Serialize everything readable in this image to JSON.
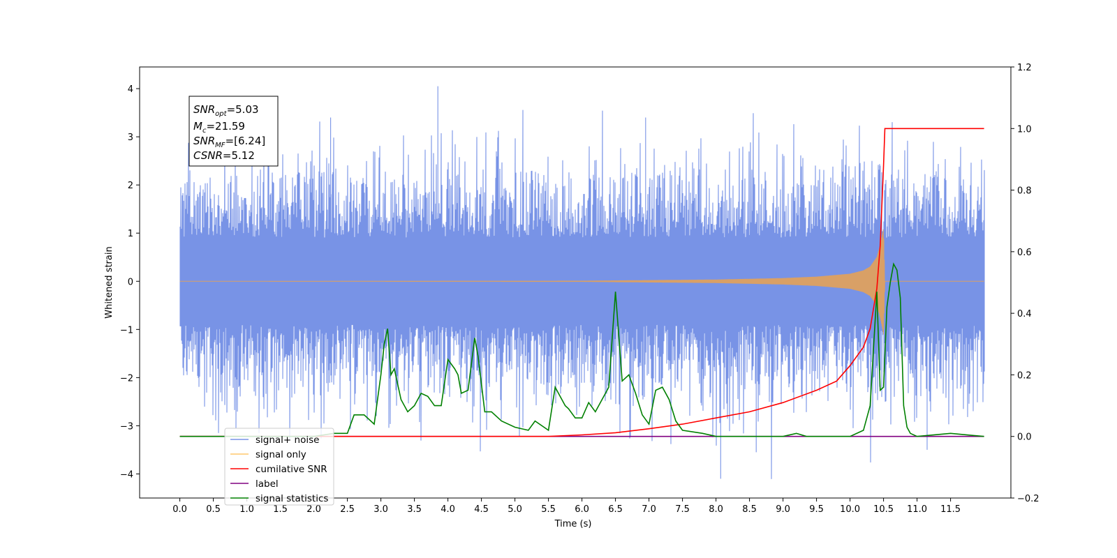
{
  "chart_data": {
    "type": "line",
    "xlabel": "Time (s)",
    "ylabel": "Whitened strain",
    "xlim": [
      -0.6,
      12.4
    ],
    "ylim": [
      -4.5,
      4.45
    ],
    "y2lim": [
      -0.2,
      1.2
    ],
    "x_ticks": [
      "0.0",
      "0.5",
      "1.0",
      "1.5",
      "2.0",
      "2.5",
      "3.0",
      "3.5",
      "4.0",
      "4.5",
      "5.0",
      "5.5",
      "6.0",
      "6.5",
      "7.0",
      "7.5",
      "8.0",
      "8.5",
      "9.0",
      "9.5",
      "10.0",
      "10.5",
      "11.0",
      "11.5"
    ],
    "y_ticks": [
      "4",
      "3",
      "2",
      "1",
      "0",
      "−1",
      "−2",
      "−3",
      "−4"
    ],
    "y2_ticks": [
      "1.2",
      "1.0",
      "0.8",
      "0.6",
      "0.4",
      "0.2",
      "0.0",
      "−0.2"
    ],
    "annotation": {
      "line1": {
        "label": "SNR",
        "sub": "opt",
        "value": "=5.03"
      },
      "line2": {
        "label": "M",
        "sub": "c",
        "value": "=21.59"
      },
      "line3": {
        "label": "SNR",
        "sub": "MF",
        "value": "=[6.24]"
      },
      "line4": {
        "label": "CSNR",
        "sub": "",
        "value": "=5.12"
      }
    },
    "legend": {
      "placement": "lower-left",
      "entries": [
        {
          "label": "signal+ noise",
          "color": "#7893e6"
        },
        {
          "label": "signal only",
          "color": "#ffc76b"
        },
        {
          "label": "cumilative SNR",
          "color": "#ff0000"
        },
        {
          "label": "label",
          "color": "#800080"
        },
        {
          "label": "signal statistics",
          "color": "#008000"
        }
      ]
    },
    "series": [
      {
        "name": "signal+ noise",
        "axis": "left",
        "color": "#7893e6",
        "x_range": [
          0.0,
          12.0
        ],
        "description_values": {
          "typical_high": 1.8,
          "typical_low": -1.8,
          "peak_max": 4.05,
          "peak_min": -4.1
        }
      },
      {
        "name": "signal only",
        "axis": "left",
        "color": "#d9a066",
        "x": [
          0.0,
          6.0,
          8.0,
          9.0,
          9.5,
          10.0,
          10.2,
          10.3,
          10.4,
          10.45,
          10.5,
          10.52,
          12.0
        ],
        "envelope": [
          0.0,
          0.005,
          0.03,
          0.06,
          0.09,
          0.15,
          0.22,
          0.3,
          0.5,
          0.75,
          1.1,
          0.0,
          0.0
        ]
      },
      {
        "name": "cumilative SNR",
        "axis": "right",
        "color": "#ff0000",
        "x": [
          0.0,
          5.0,
          5.5,
          6.0,
          6.5,
          7.0,
          7.5,
          8.0,
          8.5,
          9.0,
          9.5,
          9.8,
          10.0,
          10.2,
          10.3,
          10.4,
          10.45,
          10.5,
          10.52,
          12.0
        ],
        "values": [
          0.0,
          0.0,
          0.0,
          0.005,
          0.012,
          0.025,
          0.04,
          0.06,
          0.08,
          0.11,
          0.15,
          0.18,
          0.23,
          0.29,
          0.35,
          0.48,
          0.62,
          0.88,
          1.0,
          1.0
        ]
      },
      {
        "name": "label",
        "axis": "right",
        "color": "#800080",
        "x": [
          0.0,
          12.0
        ],
        "values": [
          0.0,
          0.0
        ]
      },
      {
        "name": "signal statistics",
        "axis": "right",
        "color": "#008000",
        "x": [
          0.0,
          2.0,
          2.3,
          2.5,
          2.6,
          2.75,
          2.9,
          3.0,
          3.05,
          3.1,
          3.15,
          3.2,
          3.3,
          3.4,
          3.5,
          3.6,
          3.7,
          3.8,
          3.9,
          4.0,
          4.1,
          4.15,
          4.2,
          4.3,
          4.4,
          4.45,
          4.55,
          4.65,
          4.8,
          5.0,
          5.2,
          5.3,
          5.5,
          5.6,
          5.75,
          5.8,
          5.9,
          6.0,
          6.1,
          6.2,
          6.3,
          6.4,
          6.5,
          6.6,
          6.7,
          6.8,
          6.9,
          7.0,
          7.1,
          7.2,
          7.3,
          7.4,
          7.5,
          7.8,
          8.0,
          9.0,
          9.2,
          9.35,
          9.5,
          10.0,
          10.2,
          10.3,
          10.4,
          10.45,
          10.5,
          10.55,
          10.6,
          10.65,
          10.7,
          10.75,
          10.8,
          10.85,
          10.9,
          11.0,
          11.5,
          12.0
        ],
        "values": [
          0.0,
          0.0,
          0.01,
          0.01,
          0.07,
          0.07,
          0.04,
          0.2,
          0.3,
          0.35,
          0.2,
          0.22,
          0.12,
          0.08,
          0.1,
          0.14,
          0.13,
          0.1,
          0.1,
          0.25,
          0.22,
          0.2,
          0.14,
          0.15,
          0.32,
          0.26,
          0.08,
          0.08,
          0.05,
          0.03,
          0.02,
          0.05,
          0.02,
          0.16,
          0.1,
          0.09,
          0.06,
          0.06,
          0.11,
          0.08,
          0.12,
          0.16,
          0.47,
          0.18,
          0.2,
          0.14,
          0.07,
          0.04,
          0.15,
          0.16,
          0.12,
          0.05,
          0.02,
          0.01,
          0.0,
          0.0,
          0.01,
          0.0,
          0.0,
          0.0,
          0.02,
          0.1,
          0.47,
          0.15,
          0.16,
          0.42,
          0.5,
          0.56,
          0.54,
          0.45,
          0.1,
          0.03,
          0.01,
          0.0,
          0.01,
          0.0
        ]
      }
    ]
  }
}
